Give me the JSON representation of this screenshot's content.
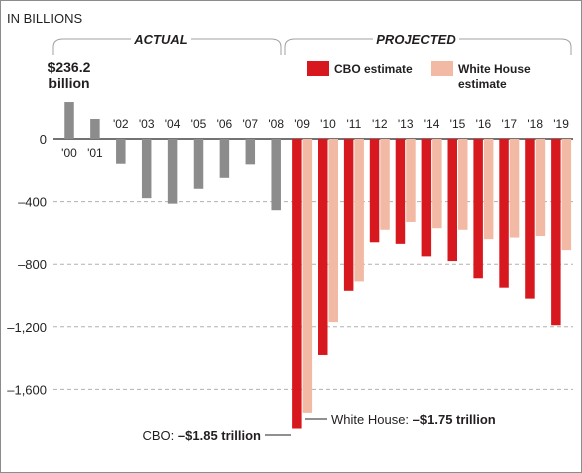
{
  "chart_data": {
    "type": "bar",
    "unit_label": "IN BILLIONS",
    "periods": {
      "actual": "ACTUAL",
      "projected": "PROJECTED"
    },
    "years": [
      "'00",
      "'01",
      "'02",
      "'03",
      "'04",
      "'05",
      "'06",
      "'07",
      "'08",
      "'09",
      "'10",
      "'11",
      "'12",
      "'13",
      "'14",
      "'15",
      "'16",
      "'17",
      "'18",
      "'19"
    ],
    "series": [
      {
        "key": "actual",
        "values": [
          236.2,
          128,
          -158,
          -378,
          -413,
          -318,
          -248,
          -162,
          -455,
          null,
          null,
          null,
          null,
          null,
          null,
          null,
          null,
          null,
          null,
          null
        ],
        "color": "#8c8c8c"
      },
      {
        "key": "cbo",
        "name": "CBO estimate",
        "values": [
          null,
          null,
          null,
          null,
          null,
          null,
          null,
          null,
          null,
          -1850,
          -1380,
          -970,
          -660,
          -670,
          -750,
          -780,
          -890,
          -950,
          -1020,
          -1190
        ],
        "color": "#d7191f"
      },
      {
        "key": "white_house",
        "name": "White House estimate",
        "values": [
          null,
          null,
          null,
          null,
          null,
          null,
          null,
          null,
          null,
          -1750,
          -1170,
          -910,
          -580,
          -530,
          -570,
          -580,
          -640,
          -630,
          -620,
          -710
        ],
        "color": "#f2b9a5"
      }
    ],
    "ylim": [
      -1900,
      300
    ],
    "yticks": [
      0,
      -400,
      -800,
      -1200,
      -1600
    ],
    "ytick_labels": [
      "0",
      "-400",
      "-800",
      "-1,200",
      "-1,600"
    ],
    "grid": "horizontal dashed",
    "legend_position": "top-right",
    "annotations": {
      "peak_value": "$236.2",
      "peak_unit": "billion",
      "cbo_prefix": "CBO: ",
      "cbo_value": "–$1.85 trillion",
      "wh_prefix": "White House: ",
      "wh_value": "–$1.75 trillion"
    }
  }
}
